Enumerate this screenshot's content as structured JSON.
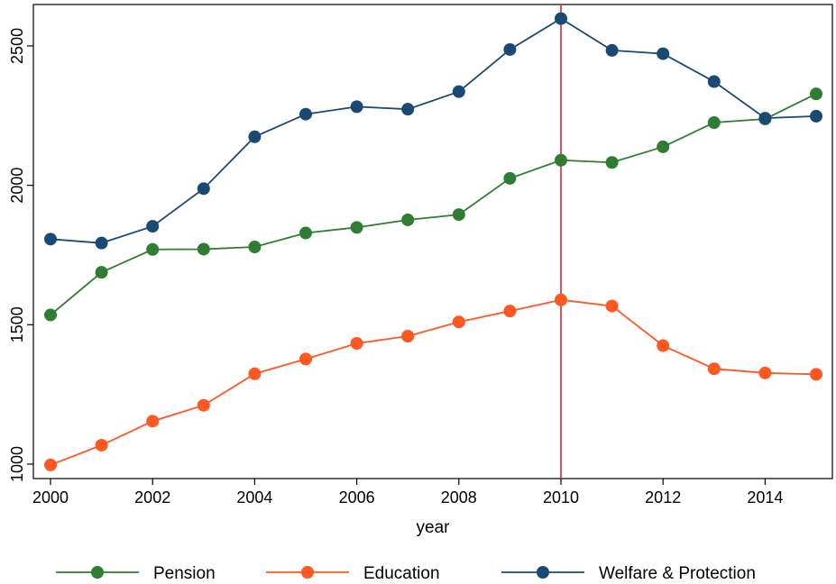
{
  "chart_data": {
    "type": "line",
    "xlabel": "year",
    "ylabel": "",
    "xlim": [
      2000,
      2015
    ],
    "ylim": [
      1000,
      2600
    ],
    "xticks": [
      2000,
      2002,
      2004,
      2006,
      2008,
      2010,
      2012,
      2014
    ],
    "yticks": [
      1000,
      1500,
      2000,
      2500
    ],
    "grid": false,
    "legend_position": "bottom",
    "x": [
      2000,
      2001,
      2002,
      2003,
      2004,
      2005,
      2006,
      2007,
      2008,
      2009,
      2010,
      2011,
      2012,
      2013,
      2014,
      2015
    ],
    "series": [
      {
        "name": "Pension",
        "color": "#2e7d32",
        "values": [
          1535,
          1688,
          1770,
          1771,
          1779,
          1829,
          1849,
          1876,
          1895,
          2025,
          2090,
          2082,
          2138,
          2225,
          2238,
          2328
        ]
      },
      {
        "name": "Education",
        "color": "#ff5722",
        "values": [
          997,
          1068,
          1154,
          1211,
          1324,
          1377,
          1433,
          1459,
          1510,
          1549,
          1589,
          1567,
          1425,
          1342,
          1327,
          1322
        ]
      },
      {
        "name": "Welfare & Protection",
        "color": "#1a4a73",
        "values": [
          1807,
          1793,
          1853,
          1988,
          2174,
          2255,
          2282,
          2273,
          2336,
          2487,
          2598,
          2484,
          2472,
          2372,
          2241,
          2248
        ]
      }
    ],
    "reference_line": {
      "axis": "x",
      "value": 2010,
      "color": "#d6243d"
    }
  }
}
